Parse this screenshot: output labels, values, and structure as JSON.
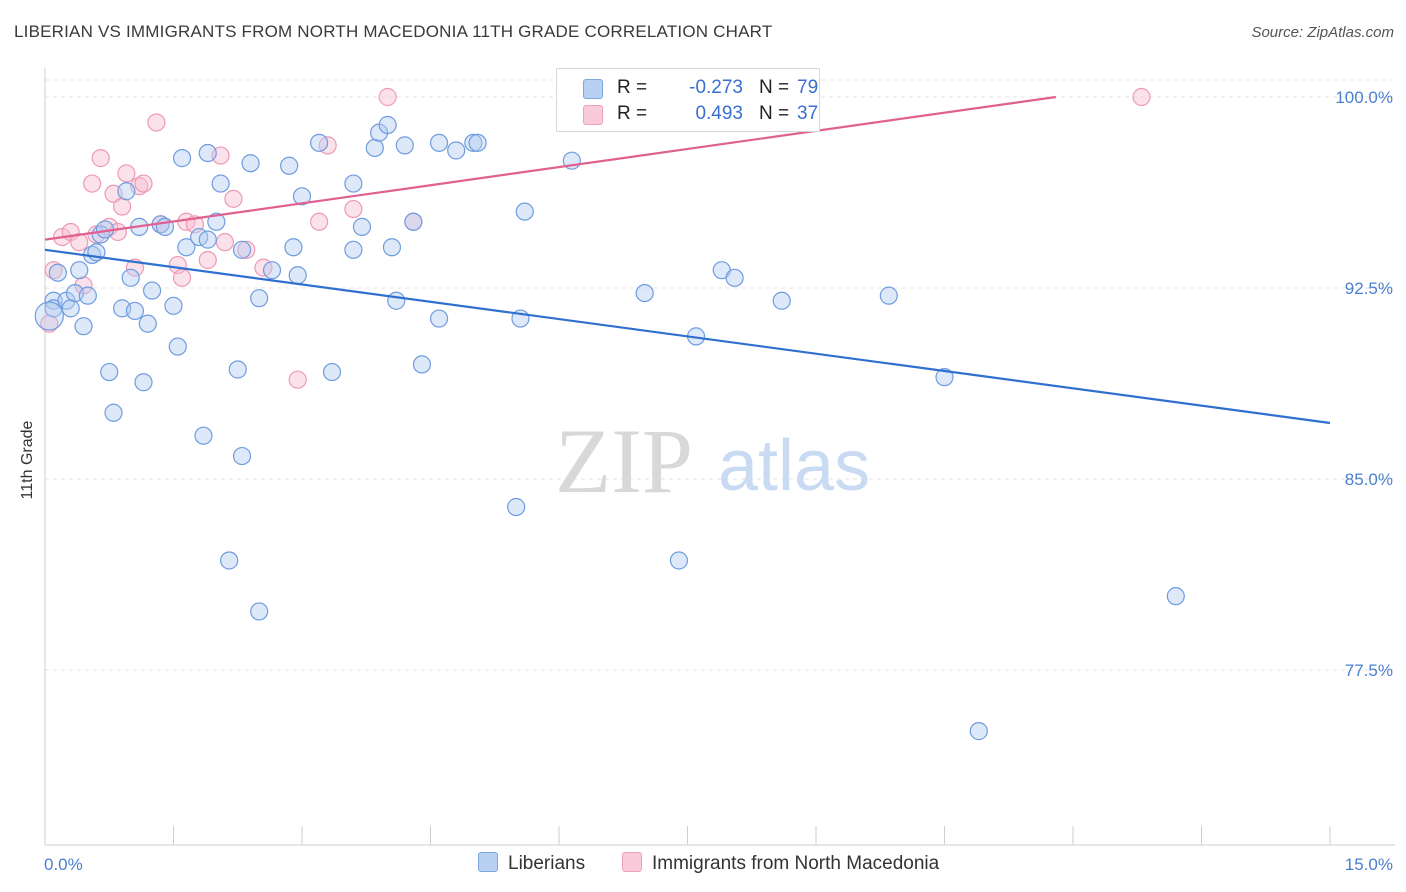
{
  "title": "LIBERIAN VS IMMIGRANTS FROM NORTH MACEDONIA 11TH GRADE CORRELATION CHART",
  "source": "Source: ZipAtlas.com",
  "watermark": {
    "zip": "ZIP",
    "atlas": "atlas"
  },
  "legend": {
    "series1": {
      "r_label": "R =",
      "r_value": "-0.273",
      "n_label": "N =",
      "n_value": "79"
    },
    "series2": {
      "r_label": "R =",
      "r_value": "0.493",
      "n_label": "N =",
      "n_value": "37"
    }
  },
  "bottom_legend": {
    "series1": "Liberians",
    "series2": "Immigrants from North Macedonia"
  },
  "chart_data": {
    "type": "scatter",
    "title": "LIBERIAN VS IMMIGRANTS FROM NORTH MACEDONIA 11TH GRADE CORRELATION CHART",
    "xlabel": "",
    "ylabel": "11th Grade",
    "xlim": [
      0.0,
      15.0
    ],
    "ylim": [
      71.0,
      100.5
    ],
    "x_tick_labels": [
      "0.0%",
      "15.0%"
    ],
    "y_ticks": [
      77.5,
      85.0,
      92.5,
      100.0
    ],
    "y_tick_labels": [
      "77.5%",
      "85.0%",
      "92.5%",
      "100.0%"
    ],
    "grid": true,
    "legend_position": "top-center",
    "colors": {
      "series1": "#a9c6ef",
      "series1_line": "#2f6fd0",
      "series2": "#f5b8cc",
      "series2_line": "#e06090"
    },
    "series": [
      {
        "name": "Liberians",
        "trend": {
          "x": [
            0.0,
            15.0
          ],
          "y": [
            94.0,
            87.2
          ]
        },
        "points": [
          [
            0.1,
            92.0
          ],
          [
            0.1,
            91.7
          ],
          [
            0.15,
            93.1
          ],
          [
            0.25,
            92.0
          ],
          [
            0.3,
            91.7
          ],
          [
            0.35,
            92.3
          ],
          [
            0.4,
            93.2
          ],
          [
            0.45,
            91.0
          ],
          [
            0.5,
            92.2
          ],
          [
            0.55,
            93.8
          ],
          [
            0.6,
            93.9
          ],
          [
            0.65,
            94.6
          ],
          [
            0.7,
            94.8
          ],
          [
            0.75,
            89.2
          ],
          [
            0.8,
            87.6
          ],
          [
            0.9,
            91.7
          ],
          [
            0.95,
            96.3
          ],
          [
            1.0,
            92.9
          ],
          [
            1.05,
            91.6
          ],
          [
            1.1,
            94.9
          ],
          [
            1.15,
            88.8
          ],
          [
            1.2,
            91.1
          ],
          [
            1.25,
            92.4
          ],
          [
            1.35,
            95.0
          ],
          [
            1.4,
            94.9
          ],
          [
            1.5,
            91.8
          ],
          [
            1.55,
            90.2
          ],
          [
            1.6,
            97.6
          ],
          [
            1.65,
            94.1
          ],
          [
            1.8,
            94.5
          ],
          [
            1.85,
            86.7
          ],
          [
            1.9,
            94.4
          ],
          [
            1.9,
            97.8
          ],
          [
            2.0,
            95.1
          ],
          [
            2.05,
            96.6
          ],
          [
            2.15,
            81.8
          ],
          [
            2.25,
            89.3
          ],
          [
            2.3,
            94.0
          ],
          [
            2.3,
            85.9
          ],
          [
            2.4,
            97.4
          ],
          [
            2.5,
            92.1
          ],
          [
            2.5,
            79.8
          ],
          [
            2.65,
            93.2
          ],
          [
            2.85,
            97.3
          ],
          [
            2.9,
            94.1
          ],
          [
            2.95,
            93.0
          ],
          [
            3.0,
            96.1
          ],
          [
            3.2,
            98.2
          ],
          [
            3.35,
            89.2
          ],
          [
            3.6,
            96.6
          ],
          [
            3.6,
            94.0
          ],
          [
            3.7,
            94.9
          ],
          [
            3.85,
            98.0
          ],
          [
            3.9,
            98.6
          ],
          [
            4.0,
            98.9
          ],
          [
            4.05,
            94.1
          ],
          [
            4.1,
            92.0
          ],
          [
            4.2,
            98.1
          ],
          [
            4.3,
            95.1
          ],
          [
            4.4,
            89.5
          ],
          [
            4.6,
            91.3
          ],
          [
            4.6,
            98.2
          ],
          [
            4.8,
            97.9
          ],
          [
            5.0,
            98.2
          ],
          [
            5.05,
            98.2
          ],
          [
            5.5,
            83.9
          ],
          [
            5.55,
            91.3
          ],
          [
            5.6,
            95.5
          ],
          [
            6.15,
            97.5
          ],
          [
            7.0,
            92.3
          ],
          [
            7.4,
            81.8
          ],
          [
            7.6,
            90.6
          ],
          [
            7.9,
            93.2
          ],
          [
            8.05,
            92.9
          ],
          [
            8.6,
            92.0
          ],
          [
            9.85,
            92.2
          ],
          [
            10.5,
            89.0
          ],
          [
            10.9,
            75.1
          ],
          [
            13.2,
            80.4
          ]
        ]
      },
      {
        "name": "Immigrants from North Macedonia",
        "trend": {
          "x": [
            0.0,
            11.8
          ],
          "y": [
            94.4,
            100.0
          ]
        },
        "points": [
          [
            0.05,
            91.1
          ],
          [
            0.1,
            93.2
          ],
          [
            0.2,
            94.5
          ],
          [
            0.3,
            94.7
          ],
          [
            0.4,
            94.3
          ],
          [
            0.45,
            92.6
          ],
          [
            0.55,
            96.6
          ],
          [
            0.6,
            94.6
          ],
          [
            0.65,
            97.6
          ],
          [
            0.75,
            94.9
          ],
          [
            0.8,
            96.2
          ],
          [
            0.85,
            94.7
          ],
          [
            0.9,
            95.7
          ],
          [
            0.95,
            97.0
          ],
          [
            1.05,
            93.3
          ],
          [
            1.1,
            96.5
          ],
          [
            1.15,
            96.6
          ],
          [
            1.3,
            99.0
          ],
          [
            1.35,
            95.0
          ],
          [
            1.55,
            93.4
          ],
          [
            1.6,
            92.9
          ],
          [
            1.65,
            95.1
          ],
          [
            1.75,
            95.0
          ],
          [
            1.9,
            93.6
          ],
          [
            2.05,
            97.7
          ],
          [
            2.1,
            94.3
          ],
          [
            2.2,
            96.0
          ],
          [
            2.35,
            94.0
          ],
          [
            2.55,
            93.3
          ],
          [
            2.95,
            88.9
          ],
          [
            3.2,
            95.1
          ],
          [
            3.3,
            98.1
          ],
          [
            3.6,
            95.6
          ],
          [
            4.0,
            100.0
          ],
          [
            4.3,
            95.1
          ],
          [
            8.0,
            100.0
          ],
          [
            12.8,
            100.0
          ]
        ]
      }
    ]
  }
}
